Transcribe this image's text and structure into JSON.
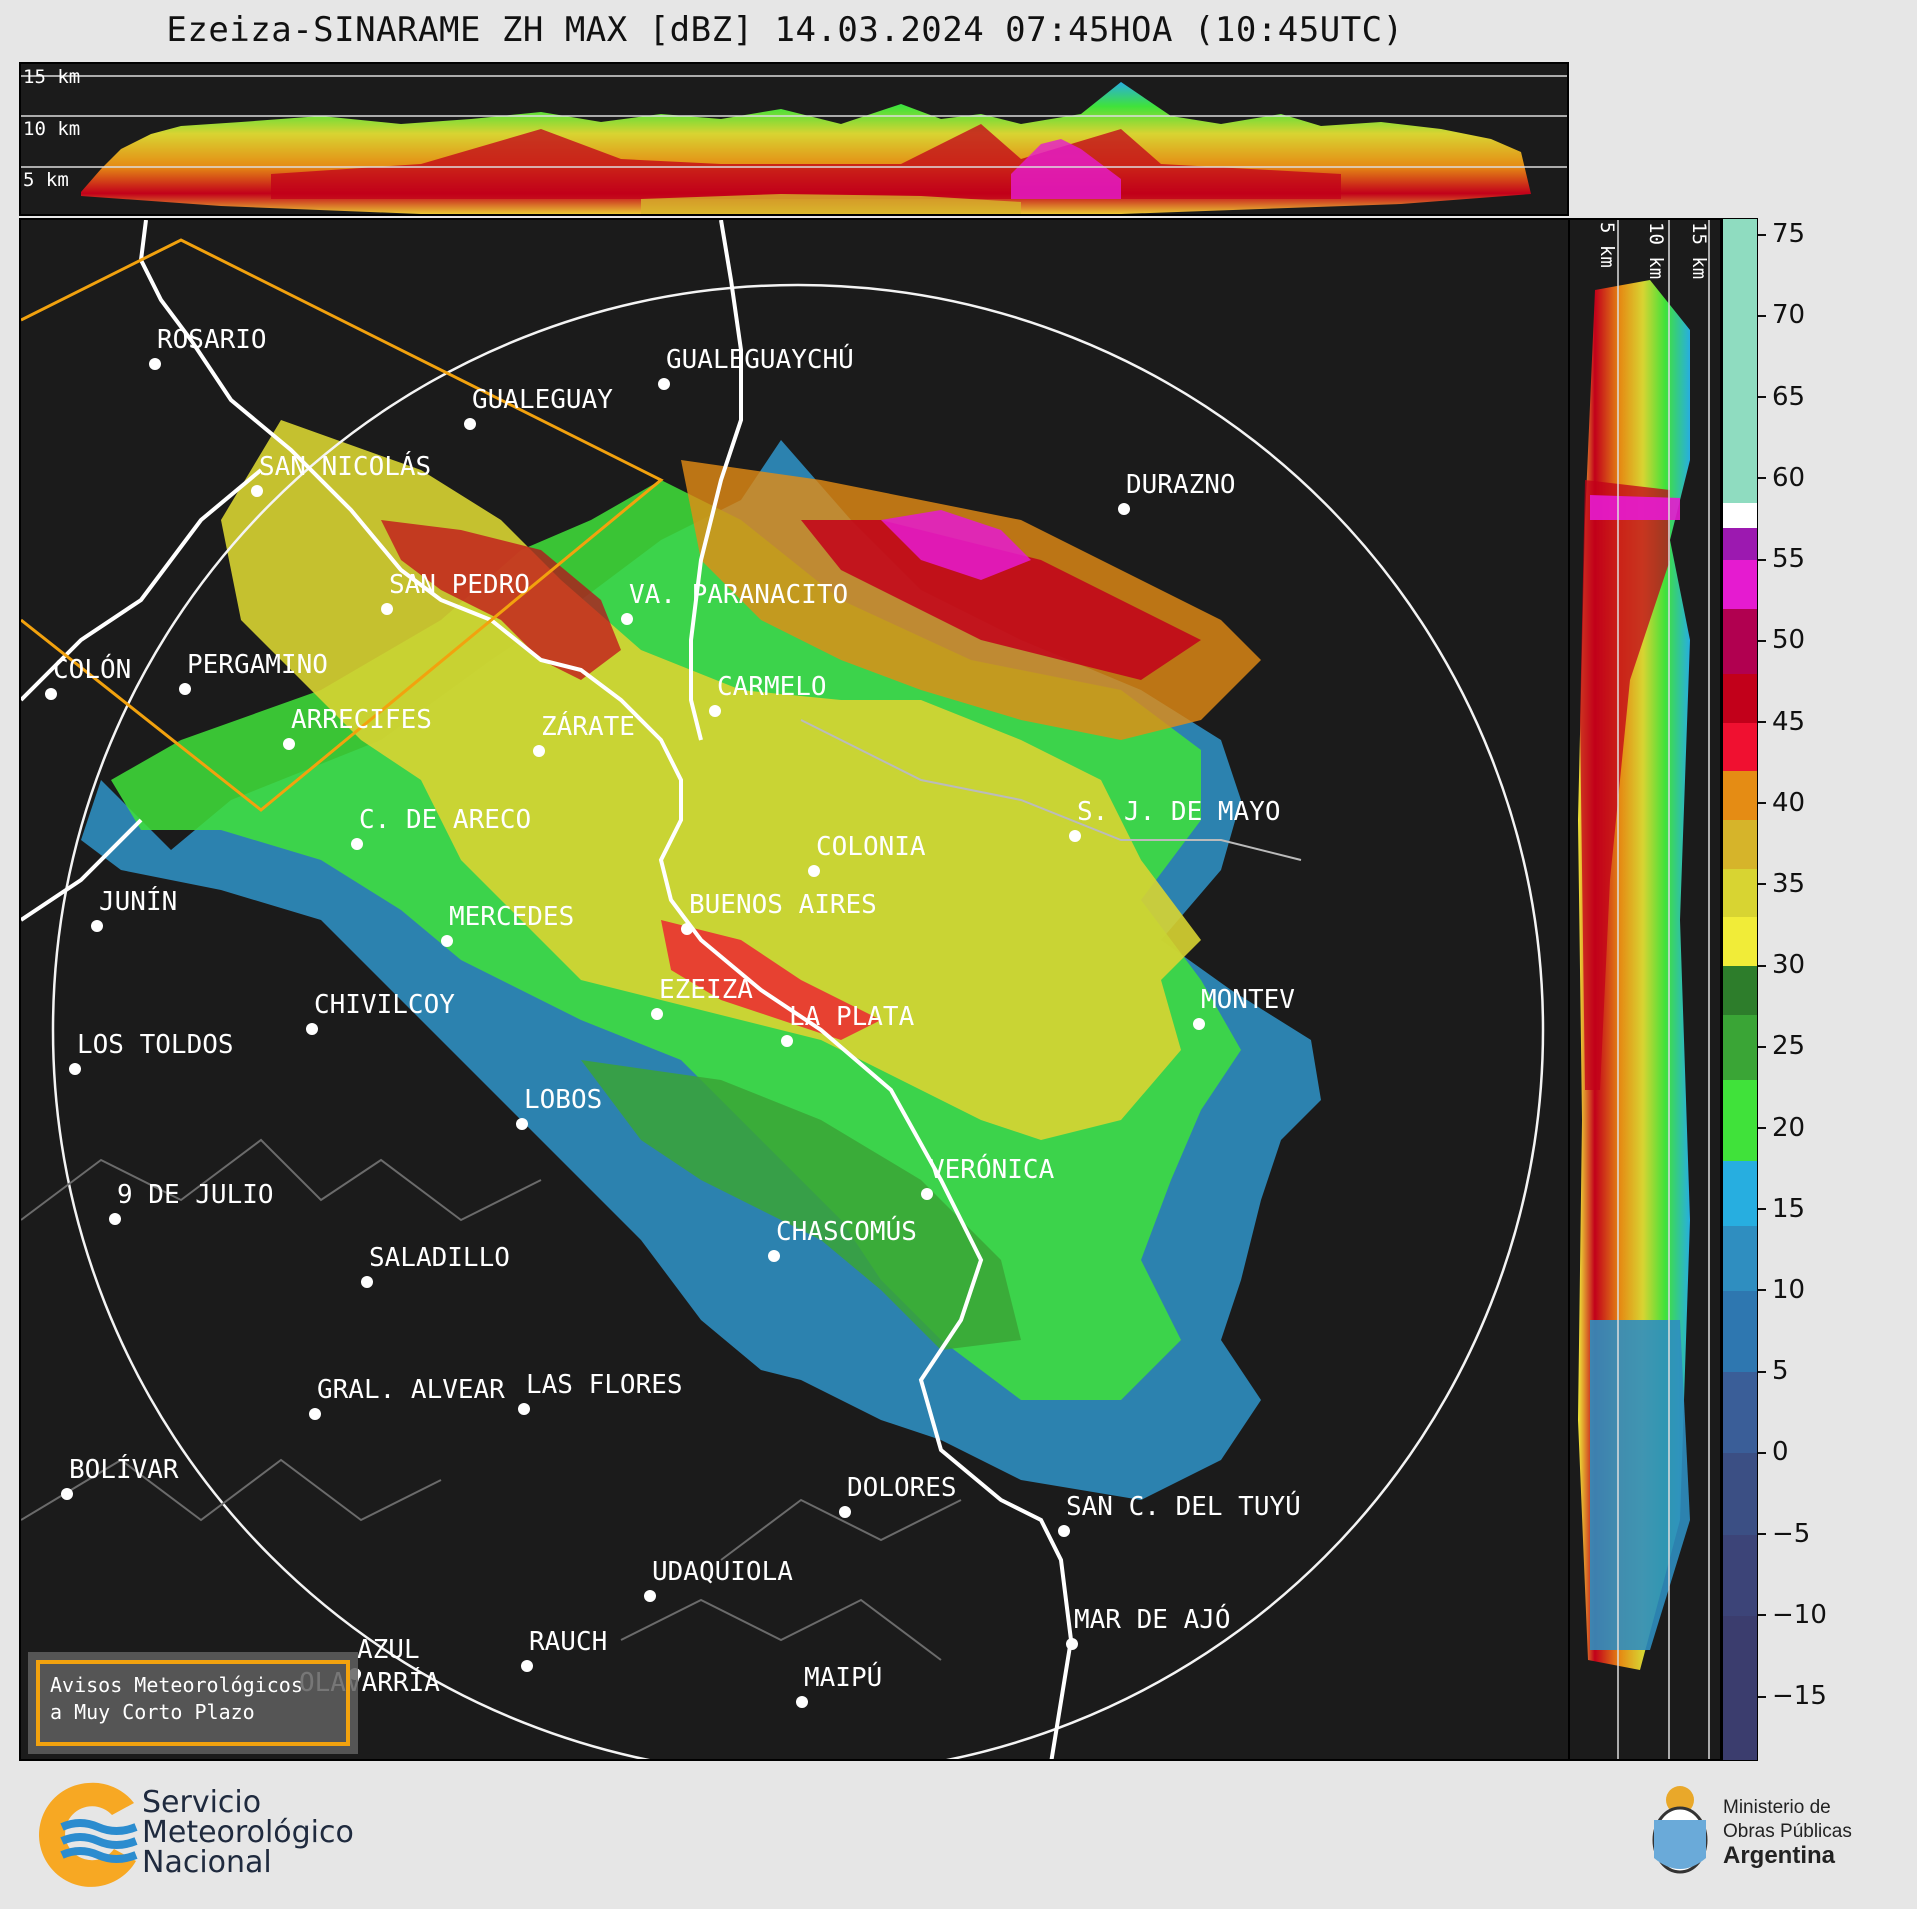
{
  "title": "Ezeiza-SINARAME ZH MAX [dBZ] 14.03.2024 07:45HOA (10:45UTC)",
  "top_section": {
    "height_labels": [
      "15 km",
      "10 km",
      "5 km"
    ]
  },
  "right_section": {
    "height_labels": [
      "5 km",
      "10 km",
      "15 km"
    ]
  },
  "colorbar": {
    "unit": "dBZ",
    "range": [
      -19,
      76
    ],
    "ticks": [
      "75",
      "70",
      "65",
      "60",
      "55",
      "50",
      "45",
      "40",
      "35",
      "30",
      "25",
      "20",
      "15",
      "10",
      "5",
      "0",
      "−5",
      "−10",
      "−15"
    ],
    "tick_values": [
      75,
      70,
      65,
      60,
      55,
      50,
      45,
      40,
      35,
      30,
      25,
      20,
      15,
      10,
      5,
      0,
      -5,
      -10,
      -15
    ],
    "colors": [
      {
        "from": 58.5,
        "to": 76,
        "color": "#8fdcc0"
      },
      {
        "from": 57,
        "to": 58.5,
        "color": "#ffffff"
      },
      {
        "from": 55,
        "to": 57,
        "color": "#9c19b0"
      },
      {
        "from": 52,
        "to": 55,
        "color": "#e51bd0"
      },
      {
        "from": 48,
        "to": 52,
        "color": "#b10050"
      },
      {
        "from": 45,
        "to": 48,
        "color": "#c2001a"
      },
      {
        "from": 42,
        "to": 45,
        "color": "#f01030"
      },
      {
        "from": 39,
        "to": 42,
        "color": "#e58c14"
      },
      {
        "from": 36,
        "to": 39,
        "color": "#d6b42a"
      },
      {
        "from": 33,
        "to": 36,
        "color": "#d8d432"
      },
      {
        "from": 30,
        "to": 33,
        "color": "#f1ec38"
      },
      {
        "from": 27,
        "to": 30,
        "color": "#2d7d2b"
      },
      {
        "from": 23,
        "to": 27,
        "color": "#3aa536"
      },
      {
        "from": 18,
        "to": 23,
        "color": "#40e23a"
      },
      {
        "from": 14,
        "to": 18,
        "color": "#27aee0"
      },
      {
        "from": 10,
        "to": 14,
        "color": "#2f8ec0"
      },
      {
        "from": 5,
        "to": 10,
        "color": "#2e77b0"
      },
      {
        "from": 0,
        "to": 5,
        "color": "#3a5e98"
      },
      {
        "from": -5,
        "to": 0,
        "color": "#3b4f84"
      },
      {
        "from": -10,
        "to": -5,
        "color": "#3c4478"
      },
      {
        "from": -19,
        "to": -10,
        "color": "#3b3d6e"
      }
    ]
  },
  "map": {
    "cities": [
      "ROSARIO",
      "GUALEGUAYCHÚ",
      "GUALEGUAY",
      "SAN NICOLÁS",
      "DURAZNO",
      "SAN PEDRO",
      "VA. PARANACITO",
      "COLÓN",
      "PERGAMINO",
      "CARMELO",
      "ARRECIFES",
      "ZÁRATE",
      "S. J. DE MAYO",
      "C. DE ARECO",
      "COLONIA",
      "JUNÍN",
      "MERCEDES",
      "BUENOS AIRES",
      "CHIVILCOY",
      "EZEIZA",
      "LA PLATA",
      "MONTEV",
      "LOS TOLDOS",
      "LOBOS",
      "VERÓNICA",
      "9 DE JULIO",
      "CHASCOMÚS",
      "SALADILLO",
      "GRAL. ALVEAR",
      "LAS FLORES",
      "BOLÍVAR",
      "DOLORES",
      "SAN C. DEL TUYÚ",
      "UDAQUIOLA",
      "MAR DE AJÓ",
      "RAUCH",
      "AZUL",
      "OLAVARRÍA",
      "MAIPÚ"
    ]
  },
  "warning": {
    "line1": "Avisos Meteorológicos",
    "line2": "a Muy Corto Plazo",
    "border_color": "#f2a20e"
  },
  "footer": {
    "smn_line1": "Servicio",
    "smn_line2": "Meteorológico",
    "smn_line3": "Nacional",
    "min_line1": "Ministerio de",
    "min_line2": "Obras Públicas",
    "min_line3": "Argentina"
  }
}
